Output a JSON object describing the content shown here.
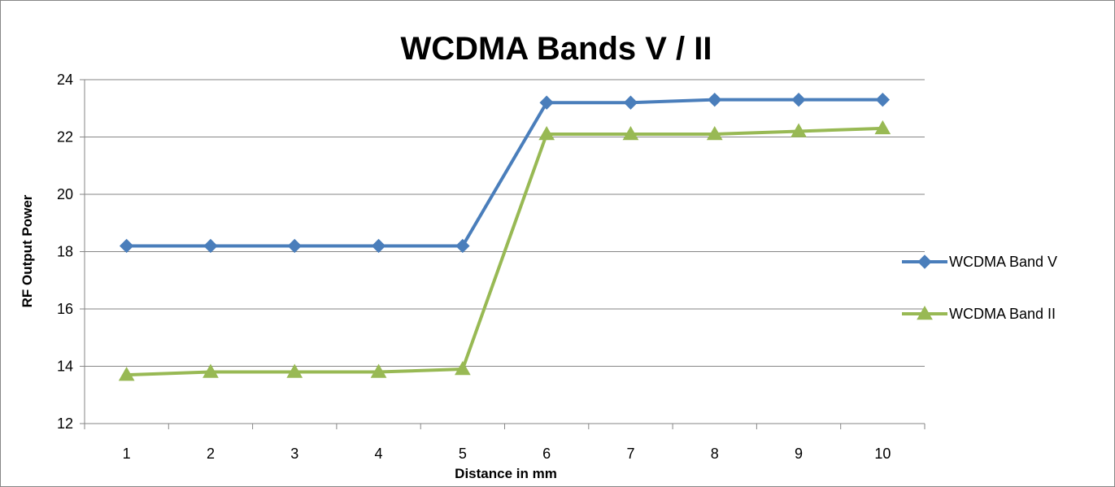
{
  "chart_data": {
    "type": "line",
    "title": "WCDMA Bands V / II",
    "xlabel": "Distance in mm",
    "ylabel": "RF Output Power",
    "categories": [
      "1",
      "2",
      "3",
      "4",
      "5",
      "6",
      "7",
      "8",
      "9",
      "10"
    ],
    "ylim": [
      12,
      24
    ],
    "yticks": [
      12,
      14,
      16,
      18,
      20,
      22,
      24
    ],
    "grid": true,
    "legend_position": "right",
    "series": [
      {
        "name": "WCDMA Band V",
        "color": "#4a7ebb",
        "marker": "diamond",
        "values": [
          18.2,
          18.2,
          18.2,
          18.2,
          18.2,
          23.2,
          23.2,
          23.3,
          23.3,
          23.3
        ]
      },
      {
        "name": "WCDMA Band II",
        "color": "#98b954",
        "marker": "triangle",
        "values": [
          13.7,
          13.8,
          13.8,
          13.8,
          13.9,
          22.1,
          22.1,
          22.1,
          22.2,
          22.3
        ]
      }
    ]
  }
}
